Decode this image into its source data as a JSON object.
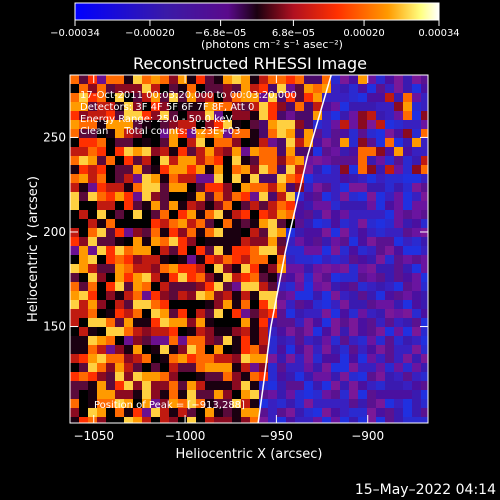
{
  "chart_data": {
    "type": "heatmap",
    "title": "Reconstructed RHESSI Image",
    "xlabel": "Heliocentric X (arcsec)",
    "ylabel": "Heliocentric Y (arcsec)",
    "xlim": [
      -1063,
      -867
    ],
    "ylim": [
      99,
      283
    ],
    "x_ticks": [
      -1050,
      -1000,
      -950,
      -900
    ],
    "x_tick_labels": [
      "−1050",
      "−1000",
      "−950",
      "−900"
    ],
    "y_ticks": [
      150,
      200,
      250
    ],
    "y_tick_labels": [
      "150",
      "200",
      "250"
    ],
    "colorbar": {
      "range": [
        -0.00034,
        0.00034
      ],
      "ticks": [
        -0.00034,
        -0.0002,
        -6.8e-05,
        6.8e-05,
        0.0002,
        0.00034
      ],
      "tick_labels": [
        "−0.00034",
        "−0.00020",
        "−6.8e−05",
        "6.8e−05",
        "0.00020",
        "0.00034"
      ],
      "unit_label": "(photons cm⁻² s⁻¹ asec⁻²)",
      "colormap": [
        "#0000ff",
        "#3a1aa8",
        "#5a0a8c",
        "#b01020",
        "#ff3000",
        "#ff9a00",
        "#ffff80",
        "#ffffff"
      ]
    },
    "info_lines": [
      "17-Oct-2011 00:03:20.000 to 00:03:20.000",
      "Detectors: 3F 4F 5F 6F 7F 8F, Att 0",
      "Energy Range: 25.0 - 50.0 keV",
      "Clean     Total counts: 8.23E+03"
    ],
    "peak_label": "Position of Peak = [−913,288]",
    "limb": [
      [
        -920,
        283
      ],
      [
        -933,
        240
      ],
      [
        -945,
        190
      ],
      [
        -953,
        150
      ],
      [
        -957,
        120
      ],
      [
        -960,
        99
      ]
    ],
    "notes": "Image region is an image-plane texture: left-of-limb area shows orange/red/black mottled emission, right-of-limb (on-disk) area is purple/blue."
  },
  "footer": {
    "timestamp": "15–May–2022 04:14"
  }
}
